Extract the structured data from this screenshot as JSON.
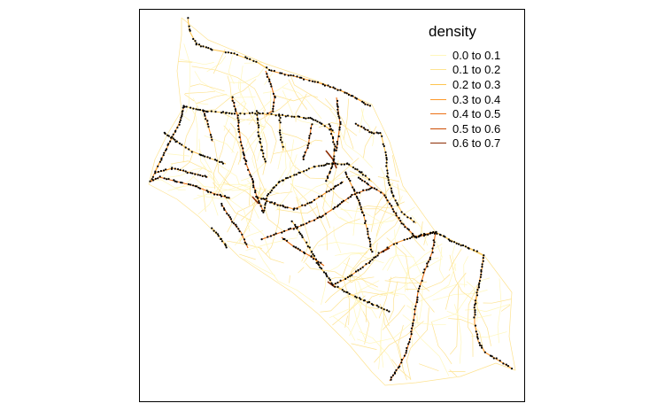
{
  "legend": {
    "title": "density",
    "items": [
      {
        "label": "0.0 to 0.1",
        "color": "#fff7bc"
      },
      {
        "label": "0.1 to 0.2",
        "color": "#fee391"
      },
      {
        "label": "0.2 to 0.3",
        "color": "#fec44f"
      },
      {
        "label": "0.3 to 0.4",
        "color": "#fe9929"
      },
      {
        "label": "0.4 to 0.5",
        "color": "#ec7014"
      },
      {
        "label": "0.5 to 0.6",
        "color": "#cc4c02"
      },
      {
        "label": "0.6 to 0.7",
        "color": "#8c2d04"
      }
    ]
  },
  "colors": {
    "point": "#000000",
    "frame": "#000000"
  }
}
